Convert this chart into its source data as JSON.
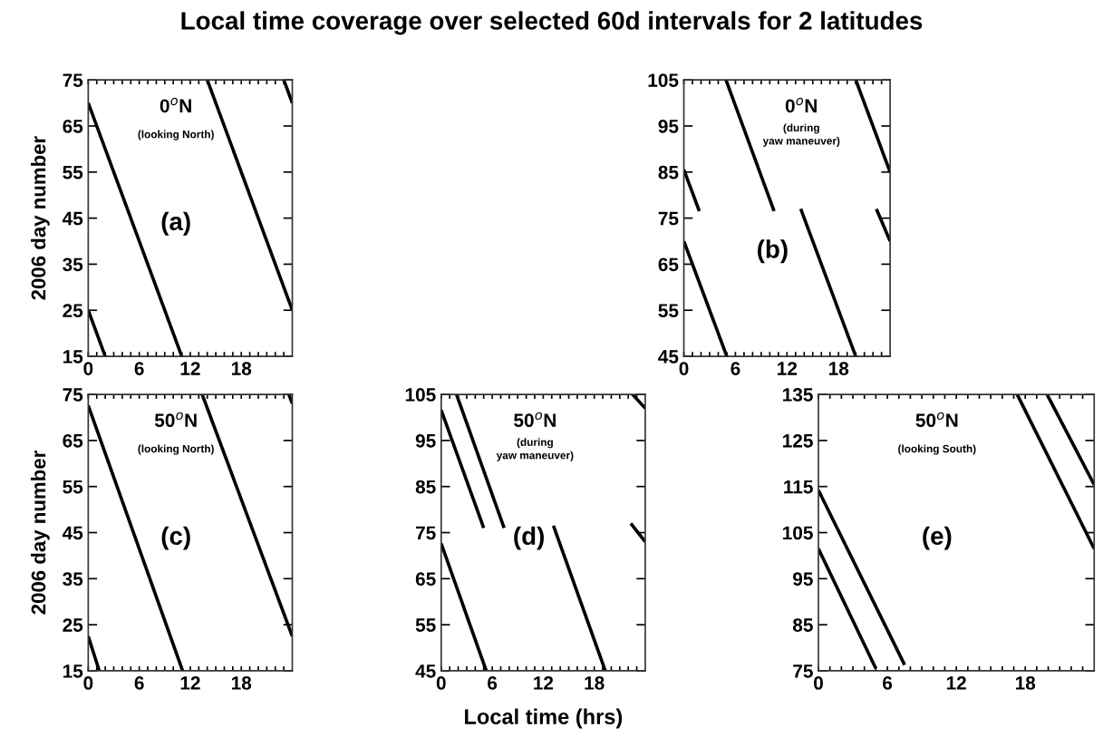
{
  "chart_data": [
    {
      "type": "line",
      "title": "Local time coverage over selected 60d intervals for 2 latitudes",
      "ylabel": "2006 day number",
      "annotations": [
        "0$^{o}$N",
        "(looking North)",
        "(a)"
      ],
      "xlim": [
        0,
        24
      ],
      "ylim": [
        15,
        75
      ],
      "xticks": [
        0,
        {
          "value": 1,
          "label": null
        },
        {
          "value": 2,
          "label": null
        },
        {
          "value": 3,
          "label": null
        },
        {
          "value": 4,
          "label": null
        },
        {
          "value": 5,
          "label": null
        },
        6,
        {
          "value": 7,
          "label": null
        },
        {
          "value": 8,
          "label": null
        },
        {
          "value": 9,
          "label": null
        },
        {
          "value": 10,
          "label": null
        },
        {
          "value": 11,
          "label": null
        },
        12,
        {
          "value": 13,
          "label": null
        },
        {
          "value": 14,
          "label": null
        },
        {
          "value": 15,
          "label": null
        },
        {
          "value": 16,
          "label": null
        },
        {
          "value": 17,
          "label": null
        },
        18,
        {
          "value": 19,
          "label": null
        },
        {
          "value": 20,
          "label": null
        },
        {
          "value": 21,
          "label": null
        },
        {
          "value": 22,
          "label": null
        },
        {
          "value": 23,
          "label": null
        }
      ],
      "yticks": [
        15,
        25,
        35,
        45,
        55,
        65,
        75
      ],
      "grid": false,
      "series": [
        {
          "color": "#000000",
          "x": [
            0,
            2
          ],
          "values": [
            25,
            15
          ]
        },
        {
          "color": "#000000",
          "x": [
            0,
            11
          ],
          "values": [
            70,
            15
          ]
        },
        {
          "color": "#000000",
          "x": [
            14,
            24
          ],
          "values": [
            75,
            25
          ]
        },
        {
          "color": "#000000",
          "x": [
            23,
            24
          ],
          "values": [
            75,
            70
          ]
        }
      ]
    },
    {
      "type": "line",
      "annotations": [
        "0$^{o}$N",
        "(during\nyaw maneuver)",
        "(b)"
      ],
      "xlim": [
        0,
        24
      ],
      "ylim": [
        45,
        105
      ],
      "xticks": [
        0,
        {
          "value": 1,
          "label": null
        },
        {
          "value": 2,
          "label": null
        },
        {
          "value": 3,
          "label": null
        },
        {
          "value": 4,
          "label": null
        },
        {
          "value": 5,
          "label": null
        },
        6,
        {
          "value": 7,
          "label": null
        },
        {
          "value": 8,
          "label": null
        },
        {
          "value": 9,
          "label": null
        },
        {
          "value": 10,
          "label": null
        },
        {
          "value": 11,
          "label": null
        },
        12,
        {
          "value": 13,
          "label": null
        },
        {
          "value": 14,
          "label": null
        },
        {
          "value": 15,
          "label": null
        },
        {
          "value": 16,
          "label": null
        },
        {
          "value": 17,
          "label": null
        },
        18,
        {
          "value": 19,
          "label": null
        },
        {
          "value": 20,
          "label": null
        },
        {
          "value": 21,
          "label": null
        },
        {
          "value": 22,
          "label": null
        },
        {
          "value": 23,
          "label": null
        }
      ],
      "yticks": [
        45,
        55,
        65,
        75,
        85,
        95,
        105
      ],
      "grid": false,
      "series": [
        {
          "color": "#000000",
          "x": [
            0,
            5
          ],
          "values": [
            70,
            45
          ]
        },
        {
          "color": "#000000",
          "x": [
            0,
            1.8
          ],
          "values": [
            85.5,
            76.5
          ]
        },
        {
          "color": "#000000",
          "x": [
            4.9,
            10.5
          ],
          "values": [
            105,
            76.5
          ]
        },
        {
          "color": "#000000",
          "x": [
            13.6,
            20
          ],
          "values": [
            77,
            45
          ]
        },
        {
          "color": "#000000",
          "x": [
            20,
            24
          ],
          "values": [
            105,
            85
          ]
        },
        {
          "color": "#000000",
          "x": [
            22.4,
            24
          ],
          "values": [
            77,
            70
          ]
        }
      ]
    },
    {
      "type": "line",
      "ylabel": "2006 day number",
      "annotations": [
        "50$^{o}$N",
        "(looking North)",
        "(c)"
      ],
      "xlim": [
        0,
        24
      ],
      "ylim": [
        15,
        75
      ],
      "xticks": [
        0,
        {
          "value": 1,
          "label": null
        },
        {
          "value": 2,
          "label": null
        },
        {
          "value": 3,
          "label": null
        },
        {
          "value": 4,
          "label": null
        },
        {
          "value": 5,
          "label": null
        },
        6,
        {
          "value": 7,
          "label": null
        },
        {
          "value": 8,
          "label": null
        },
        {
          "value": 9,
          "label": null
        },
        {
          "value": 10,
          "label": null
        },
        {
          "value": 11,
          "label": null
        },
        12,
        {
          "value": 13,
          "label": null
        },
        {
          "value": 14,
          "label": null
        },
        {
          "value": 15,
          "label": null
        },
        {
          "value": 16,
          "label": null
        },
        {
          "value": 17,
          "label": null
        },
        18,
        {
          "value": 19,
          "label": null
        },
        {
          "value": 20,
          "label": null
        },
        {
          "value": 21,
          "label": null
        },
        {
          "value": 22,
          "label": null
        },
        {
          "value": 23,
          "label": null
        }
      ],
      "yticks": [
        15,
        25,
        35,
        45,
        55,
        65,
        75
      ],
      "grid": false,
      "series": [
        {
          "color": "#000000",
          "x": [
            0,
            11.1
          ],
          "values": [
            72.6,
            15
          ]
        },
        {
          "color": "#000000",
          "x": [
            0,
            1.3
          ],
          "values": [
            22.5,
            15
          ]
        },
        {
          "color": "#000000",
          "x": [
            13.4,
            24
          ],
          "values": [
            75,
            22.5
          ]
        },
        {
          "color": "#000000",
          "x": [
            23.6,
            24
          ],
          "values": [
            75,
            73
          ]
        }
      ]
    },
    {
      "type": "line",
      "xlabel": "Local time (hrs)",
      "annotations": [
        "50$^{o}$N",
        "(during\nyaw maneuver)",
        "(d)"
      ],
      "xlim": [
        0,
        24
      ],
      "ylim": [
        45,
        105
      ],
      "xticks": [
        0,
        {
          "value": 1,
          "label": null
        },
        {
          "value": 2,
          "label": null
        },
        {
          "value": 3,
          "label": null
        },
        {
          "value": 4,
          "label": null
        },
        {
          "value": 5,
          "label": null
        },
        6,
        {
          "value": 7,
          "label": null
        },
        {
          "value": 8,
          "label": null
        },
        {
          "value": 9,
          "label": null
        },
        {
          "value": 10,
          "label": null
        },
        {
          "value": 11,
          "label": null
        },
        12,
        {
          "value": 13,
          "label": null
        },
        {
          "value": 14,
          "label": null
        },
        {
          "value": 15,
          "label": null
        },
        {
          "value": 16,
          "label": null
        },
        {
          "value": 17,
          "label": null
        },
        18,
        {
          "value": 19,
          "label": null
        },
        {
          "value": 20,
          "label": null
        },
        {
          "value": 21,
          "label": null
        },
        {
          "value": 22,
          "label": null
        },
        {
          "value": 23,
          "label": null
        }
      ],
      "yticks": [
        45,
        55,
        65,
        75,
        85,
        95,
        105
      ],
      "grid": false,
      "series": [
        {
          "color": "#000000",
          "x": [
            0,
            5.3
          ],
          "values": [
            72.6,
            45
          ]
        },
        {
          "color": "#000000",
          "x": [
            0,
            5
          ],
          "values": [
            101.6,
            76
          ]
        },
        {
          "color": "#000000",
          "x": [
            1.8,
            7.4
          ],
          "values": [
            105,
            76
          ]
        },
        {
          "color": "#000000",
          "x": [
            13.2,
            19.3
          ],
          "values": [
            76.5,
            45
          ]
        },
        {
          "color": "#000000",
          "x": [
            22.5,
            24
          ],
          "values": [
            105,
            102
          ]
        },
        {
          "color": "#000000",
          "x": [
            22.3,
            24
          ],
          "values": [
            77,
            73
          ]
        }
      ]
    },
    {
      "type": "line",
      "annotations": [
        "50$^{o}$N",
        "(looking South)",
        "(e)"
      ],
      "xlim": [
        0,
        24
      ],
      "ylim": [
        75,
        135
      ],
      "xticks": [
        0,
        {
          "value": 1,
          "label": null
        },
        {
          "value": 2,
          "label": null
        },
        {
          "value": 3,
          "label": null
        },
        {
          "value": 4,
          "label": null
        },
        {
          "value": 5,
          "label": null
        },
        6,
        {
          "value": 7,
          "label": null
        },
        {
          "value": 8,
          "label": null
        },
        {
          "value": 9,
          "label": null
        },
        {
          "value": 10,
          "label": null
        },
        {
          "value": 11,
          "label": null
        },
        12,
        {
          "value": 13,
          "label": null
        },
        {
          "value": 14,
          "label": null
        },
        {
          "value": 15,
          "label": null
        },
        {
          "value": 16,
          "label": null
        },
        {
          "value": 17,
          "label": null
        },
        18,
        {
          "value": 19,
          "label": null
        },
        {
          "value": 20,
          "label": null
        },
        {
          "value": 21,
          "label": null
        },
        {
          "value": 22,
          "label": null
        },
        {
          "value": 23,
          "label": null
        }
      ],
      "yticks": [
        75,
        85,
        95,
        105,
        115,
        125,
        135
      ],
      "grid": false,
      "series": [
        {
          "color": "#000000",
          "x": [
            0,
            5
          ],
          "values": [
            101.5,
            75.5
          ]
        },
        {
          "color": "#000000",
          "x": [
            0,
            7.5
          ],
          "values": [
            114.2,
            76.3
          ]
        },
        {
          "color": "#000000",
          "x": [
            17.3,
            24
          ],
          "values": [
            135,
            101.5
          ]
        },
        {
          "color": "#000000",
          "x": [
            19.9,
            24
          ],
          "values": [
            135,
            115.4
          ]
        }
      ]
    }
  ]
}
